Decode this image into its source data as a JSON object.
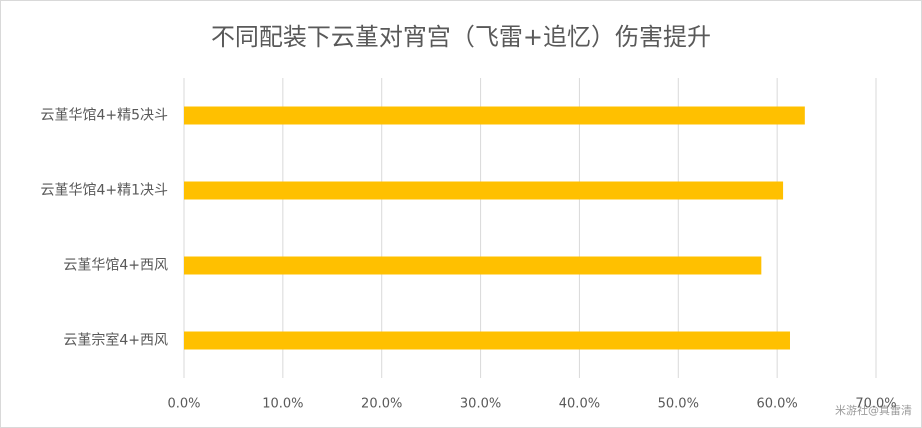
{
  "chart_data": {
    "type": "bar",
    "orientation": "horizontal",
    "title": "不同配装下云堇对宵宫（飞雷+追忆）伤害提升",
    "categories": [
      "云堇华馆4+精5决斗",
      "云堇华馆4+精1决斗",
      "云堇华馆4+西风",
      "云堇宗室4+西风"
    ],
    "values": [
      62.8,
      60.6,
      58.4,
      61.3
    ],
    "color": "#ffc000",
    "xlim": [
      0,
      70
    ],
    "xticks": [
      {
        "value": 0,
        "label": "0.0%"
      },
      {
        "value": 10,
        "label": "10.0%"
      },
      {
        "value": 20,
        "label": "20.0%"
      },
      {
        "value": 30,
        "label": "30.0%"
      },
      {
        "value": 40,
        "label": "40.0%"
      },
      {
        "value": 50,
        "label": "50.0%"
      },
      {
        "value": 60,
        "label": "60.0%"
      },
      {
        "value": 70,
        "label": "70.0%"
      }
    ],
    "grid": true,
    "watermark": "米游社@真雷清"
  }
}
